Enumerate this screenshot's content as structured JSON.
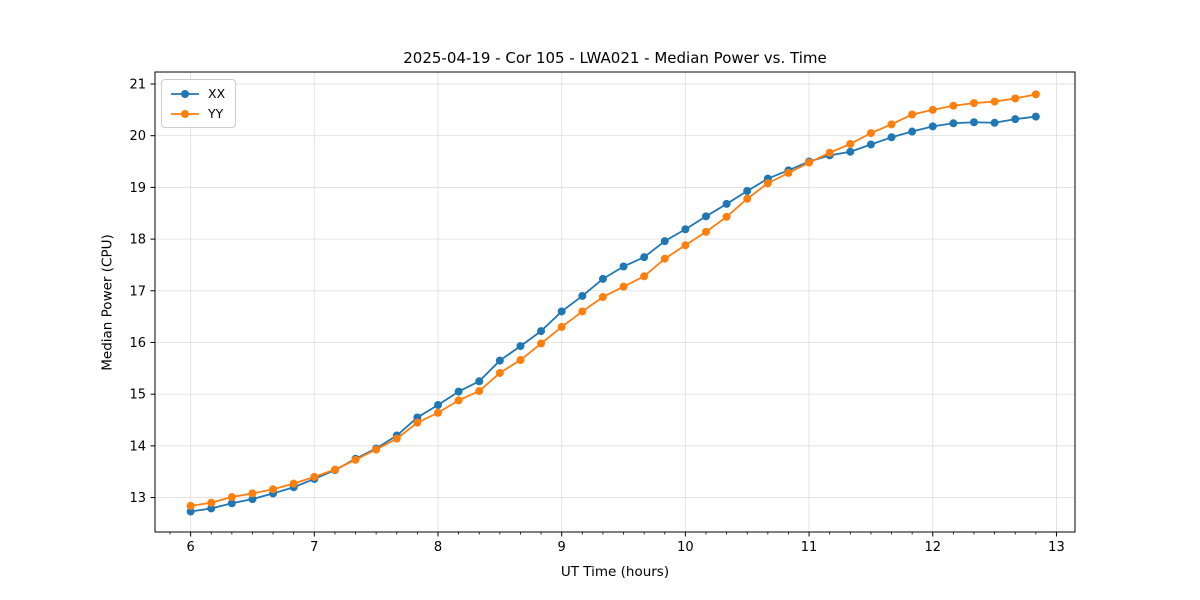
{
  "title": "2025-04-19 - Cor 105 - LWA021 - Median Power vs. Time",
  "chart_data": {
    "type": "line",
    "title": "2025-04-19 - Cor 105 - LWA021 - Median Power vs. Time",
    "xlabel": "UT Time (hours)",
    "ylabel": "Median Power (CPU)",
    "xlim": [
      5.712,
      13.15
    ],
    "ylim": [
      12.334,
      21.232
    ],
    "x_ticks": [
      6,
      7,
      8,
      9,
      10,
      11,
      12,
      13
    ],
    "x_tick_labels": [
      "6",
      "7",
      "8",
      "9",
      "10",
      "11",
      "12",
      "13"
    ],
    "y_ticks": [
      13,
      14,
      15,
      16,
      17,
      18,
      19,
      20,
      21
    ],
    "y_tick_labels": [
      "13",
      "14",
      "15",
      "16",
      "17",
      "18",
      "19",
      "20",
      "21"
    ],
    "grid": true,
    "legend_position": "upper left",
    "x": [
      6.0,
      6.1667,
      6.3333,
      6.5,
      6.6667,
      6.8333,
      7.0,
      7.1667,
      7.3333,
      7.5,
      7.6667,
      7.8333,
      8.0,
      8.1667,
      8.3333,
      8.5,
      8.6667,
      8.8333,
      9.0,
      9.1667,
      9.3333,
      9.5,
      9.6667,
      9.8333,
      10.0,
      10.1667,
      10.3333,
      10.5,
      10.6667,
      10.8333,
      11.0,
      11.1667,
      11.3333,
      11.5,
      11.6667,
      11.8333,
      12.0,
      12.1667,
      12.3333,
      12.5,
      12.6667,
      12.8333
    ],
    "series": [
      {
        "name": "XX",
        "color": "#1f77b4",
        "values": [
          12.73,
          12.79,
          12.89,
          12.97,
          13.08,
          13.2,
          13.36,
          13.53,
          13.75,
          13.95,
          14.2,
          14.55,
          14.79,
          15.05,
          15.25,
          15.65,
          15.93,
          16.22,
          16.6,
          16.9,
          17.23,
          17.47,
          17.65,
          17.96,
          18.19,
          18.44,
          18.68,
          18.93,
          19.17,
          19.33,
          19.5,
          19.62,
          19.69,
          19.83,
          19.97,
          20.08,
          20.18,
          20.24,
          20.26,
          20.25,
          20.32,
          20.37
        ]
      },
      {
        "name": "YY",
        "color": "#ff7f0e",
        "values": [
          12.84,
          12.9,
          13.01,
          13.08,
          13.16,
          13.27,
          13.4,
          13.54,
          13.73,
          13.93,
          14.14,
          14.45,
          14.64,
          14.88,
          15.06,
          15.41,
          15.66,
          15.98,
          16.3,
          16.6,
          16.88,
          17.08,
          17.28,
          17.62,
          17.88,
          18.14,
          18.43,
          18.78,
          19.08,
          19.28,
          19.48,
          19.67,
          19.84,
          20.05,
          20.22,
          20.41,
          20.5,
          20.58,
          20.63,
          20.66,
          20.72,
          20.8
        ]
      }
    ],
    "style": {
      "grid_color": "#e0e0e0",
      "spine_color": "#000000",
      "tick_color": "#000000",
      "marker_radius": 4,
      "line_width": 1.8
    }
  },
  "geometry_note": "plot box left 155, top 72, width 920, height 460"
}
